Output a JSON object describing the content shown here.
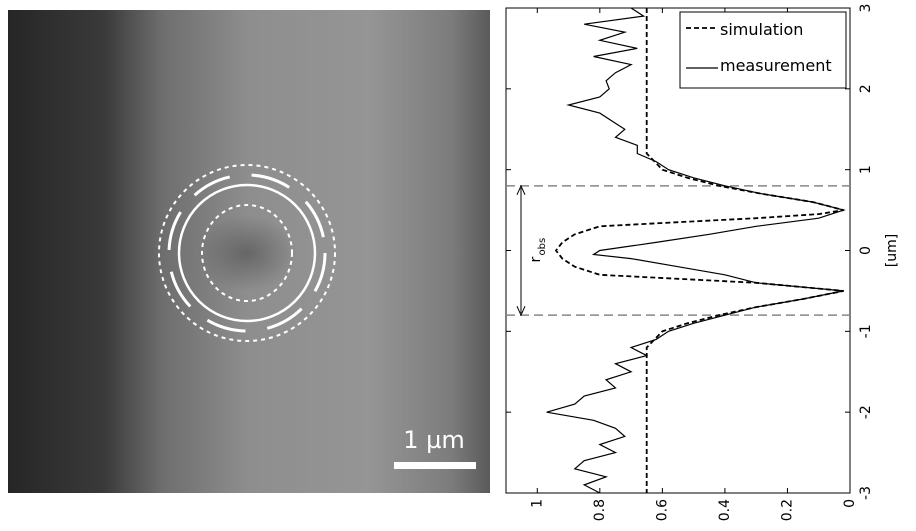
{
  "chart_data": {
    "type": "line",
    "image_label": "1 µm",
    "xlabel": "[um]",
    "xlim": [
      -3,
      3
    ],
    "xticks": [
      -3,
      -2,
      -1,
      0,
      1,
      2,
      3
    ],
    "ylim": [
      0,
      1.1
    ],
    "yticks": [
      0,
      0.2,
      0.4,
      0.6,
      0.8,
      1
    ],
    "reference_lines": [
      -0.8,
      0.8
    ],
    "annotation": {
      "text": "r",
      "subscript": "obs"
    },
    "series": [
      {
        "name": "simulation",
        "color": "#000000",
        "style": "dashed",
        "x": [
          3.0,
          2.0,
          1.2,
          1.0,
          0.9,
          0.8,
          0.7,
          0.6,
          0.5,
          0.45,
          0.4,
          0.35,
          0.3,
          0.2,
          0.1,
          0.0,
          -0.1,
          -0.2,
          -0.3,
          -0.35,
          -0.4,
          -0.5,
          -0.6,
          -0.7,
          -0.8,
          -0.9,
          -1.0,
          -1.2,
          -2.0,
          -3.0
        ],
        "values": [
          0.65,
          0.65,
          0.65,
          0.6,
          0.52,
          0.42,
          0.28,
          0.12,
          0.02,
          0.1,
          0.3,
          0.55,
          0.8,
          0.88,
          0.92,
          0.94,
          0.92,
          0.88,
          0.8,
          0.55,
          0.3,
          0.02,
          0.15,
          0.3,
          0.42,
          0.52,
          0.6,
          0.65,
          0.65,
          0.65
        ]
      },
      {
        "name": "measurement",
        "color": "#000000",
        "style": "solid",
        "x": [
          3.0,
          2.9,
          2.8,
          2.7,
          2.6,
          2.5,
          2.4,
          2.3,
          2.2,
          2.1,
          2.0,
          1.9,
          1.8,
          1.7,
          1.6,
          1.5,
          1.4,
          1.3,
          1.2,
          1.1,
          1.0,
          0.9,
          0.8,
          0.7,
          0.6,
          0.5,
          0.4,
          0.3,
          0.2,
          0.1,
          0.0,
          -0.05,
          -0.1,
          -0.2,
          -0.3,
          -0.4,
          -0.5,
          -0.6,
          -0.7,
          -0.8,
          -0.9,
          -1.0,
          -1.1,
          -1.2,
          -1.3,
          -1.4,
          -1.5,
          -1.6,
          -1.7,
          -1.8,
          -1.9,
          -2.0,
          -2.1,
          -2.2,
          -2.3,
          -2.4,
          -2.5,
          -2.6,
          -2.7,
          -2.8,
          -2.9,
          -3.0
        ],
        "values": [
          0.7,
          0.66,
          0.85,
          0.72,
          0.8,
          0.68,
          0.82,
          0.7,
          0.75,
          0.78,
          0.77,
          0.8,
          0.9,
          0.8,
          0.76,
          0.72,
          0.75,
          0.68,
          0.68,
          0.62,
          0.58,
          0.5,
          0.4,
          0.28,
          0.12,
          0.02,
          0.1,
          0.3,
          0.45,
          0.62,
          0.8,
          0.82,
          0.7,
          0.55,
          0.4,
          0.3,
          0.02,
          0.15,
          0.3,
          0.4,
          0.5,
          0.58,
          0.62,
          0.7,
          0.65,
          0.75,
          0.7,
          0.78,
          0.75,
          0.85,
          0.88,
          0.97,
          0.82,
          0.75,
          0.72,
          0.8,
          0.75,
          0.85,
          0.88,
          0.78,
          0.85,
          0.8
        ]
      }
    ]
  }
}
